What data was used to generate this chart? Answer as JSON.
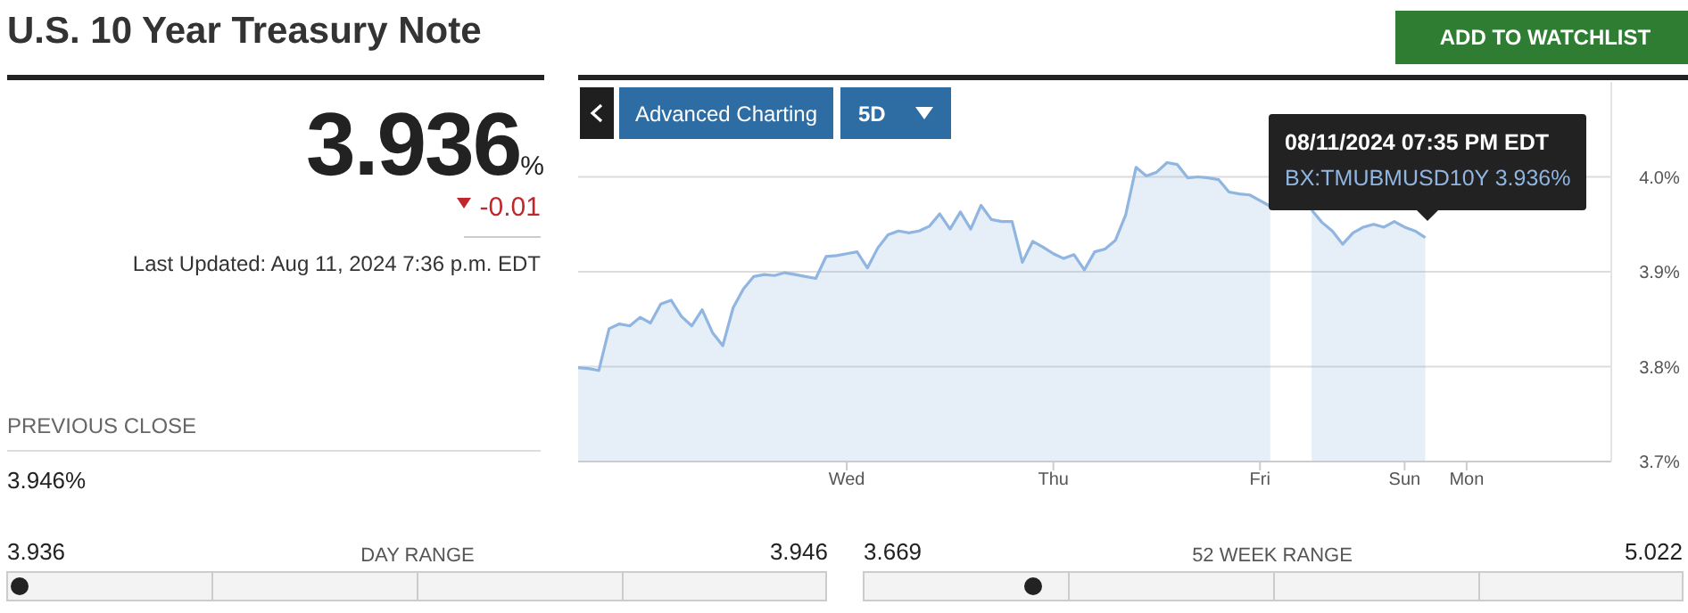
{
  "chart_data": {
    "type": "area",
    "title": "U.S. 10 Year Treasury Note",
    "categories": [
      null,
      null,
      null,
      null,
      null,
      null,
      null,
      null,
      null,
      null,
      null,
      null,
      null,
      null,
      null,
      null,
      null,
      null,
      null,
      null,
      null,
      null,
      null,
      null,
      null,
      null,
      "Wed",
      null,
      null,
      null,
      null,
      null,
      null,
      null,
      null,
      null,
      null,
      null,
      null,
      null,
      null,
      null,
      null,
      null,
      null,
      null,
      "Thu",
      null,
      null,
      null,
      null,
      null,
      null,
      null,
      null,
      null,
      null,
      null,
      null,
      null,
      null,
      null,
      null,
      null,
      null,
      null,
      "Fri",
      null,
      null,
      null,
      null,
      null,
      null,
      null,
      null,
      null,
      null,
      null,
      null,
      null,
      "Sun",
      null,
      null,
      null,
      null,
      null,
      "Mon",
      null,
      null,
      null,
      null,
      null,
      null,
      null,
      null,
      null,
      null,
      null,
      null,
      null,
      null
    ],
    "series": [
      {
        "color": "#8fb5e0",
        "values": [
          3.799,
          3.798,
          3.796,
          3.84,
          3.845,
          3.843,
          3.852,
          3.846,
          3.866,
          3.87,
          3.853,
          3.843,
          3.86,
          3.836,
          3.822,
          3.862,
          3.882,
          3.895,
          3.897,
          3.896,
          3.899,
          3.897,
          3.895,
          3.893,
          3.916,
          3.917,
          3.919,
          3.921,
          3.904,
          3.925,
          3.939,
          3.943,
          3.941,
          3.943,
          3.948,
          3.961,
          3.945,
          3.963,
          3.945,
          3.97,
          3.955,
          3.953,
          3.953,
          3.91,
          3.932,
          3.926,
          3.919,
          3.914,
          3.918,
          3.902,
          3.921,
          3.924,
          3.933,
          3.96,
          4.01,
          4.001,
          4.005,
          4.015,
          4.013,
          3.999,
          4.0,
          3.999,
          3.997,
          3.984,
          3.982,
          3.981,
          3.975,
          3.969,
          null,
          null,
          null,
          3.965,
          3.952,
          3.943,
          3.929,
          3.941,
          3.947,
          3.95,
          3.947,
          3.953,
          3.947,
          3.943,
          3.936,
          null,
          null,
          null,
          null,
          null,
          null,
          null,
          null,
          null,
          null,
          null,
          null,
          null,
          null,
          null,
          null,
          null,
          null
        ]
      }
    ],
    "ylim": [
      3.7,
      4.1
    ],
    "yticks": [
      {
        "value": 3.7,
        "label": "3.7%"
      },
      {
        "value": 3.8,
        "label": "3.8%"
      },
      {
        "value": 3.9,
        "label": "3.9%"
      },
      {
        "value": 4.0,
        "label": "4.0%"
      }
    ],
    "grid": "y",
    "marker": "none",
    "annotations": [
      "3.936%",
      "-0.01",
      "Last Updated: Aug 11, 2024 7:36 p.m. EDT",
      "PREVIOUS CLOSE",
      "3.946%",
      "3.936",
      "DAY RANGE",
      "3.946",
      "3.669",
      "52 WEEK RANGE",
      "5.022",
      "ADD TO WATCHLIST",
      "Advanced Charting",
      "5D",
      "08/11/2024 07:35 PM EDT",
      "BX:TMUBMUSD10Y  3.936%"
    ]
  }
}
